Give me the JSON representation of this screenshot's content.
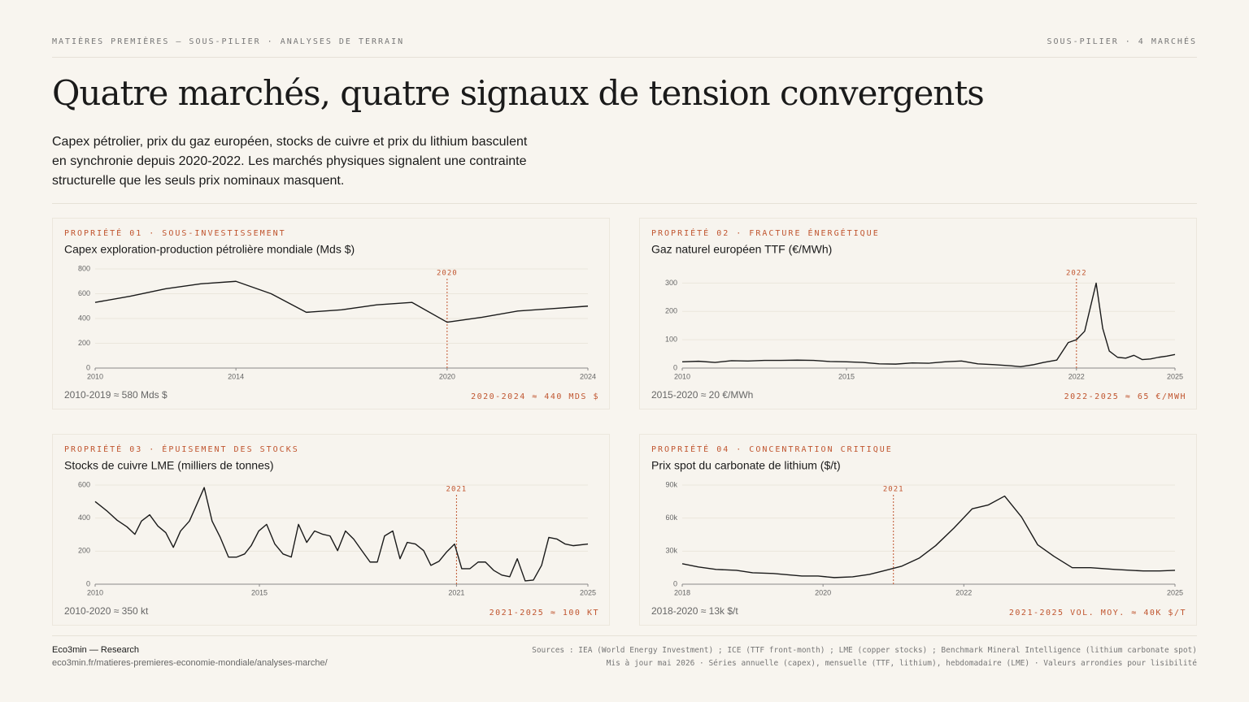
{
  "header": {
    "kicker": "MATIÈRES PREMIÈRES — SOUS-PILIER · ANALYSES DE TERRAIN",
    "right": "SOUS-PILIER · 4 MARCHÉS"
  },
  "title": "Quatre marchés, quatre signaux de tension convergents",
  "subtitle": "Capex pétrolier, prix du gaz européen, stocks de cuivre et prix du lithium basculent en synchronie depuis 2020-2022. Les marchés physiques signalent une contrainte structurelle que les seuls prix nominaux masquent.",
  "chart_data": [
    {
      "type": "line",
      "kicker": "PROPRIÉTÉ 01 · SOUS-INVESTISSEMENT",
      "title": "Capex exploration-production pétrolière mondiale (Mds $)",
      "color": "#1a1a1a",
      "marker_color": "#c0552f",
      "x": [
        2010,
        2011,
        2012,
        2013,
        2014,
        2015,
        2016,
        2017,
        2018,
        2019,
        2020,
        2021,
        2022,
        2023,
        2024
      ],
      "values": [
        530,
        580,
        640,
        680,
        700,
        600,
        450,
        470,
        510,
        530,
        370,
        410,
        460,
        480,
        500
      ],
      "xlim": [
        2010,
        2024
      ],
      "xticks": [
        2010,
        2014,
        2020,
        2024
      ],
      "ylim": [
        0,
        800
      ],
      "yticks": [
        0,
        200,
        400,
        600,
        800
      ],
      "grid": true,
      "marker": 2020,
      "note_left": "2010-2019 ≈ 580 Mds $",
      "note_right": "2020-2024 ≈ 440 MDS $"
    },
    {
      "type": "line",
      "kicker": "PROPRIÉTÉ 02 · FRACTURE ÉNERGÉTIQUE",
      "title": "Gaz naturel européen TTF (€/MWh)",
      "color": "#1a1a1a",
      "marker_color": "#c0552f",
      "x": [
        2010,
        2010.5,
        2011,
        2011.5,
        2012,
        2012.5,
        2013,
        2013.5,
        2014,
        2014.5,
        2015,
        2015.5,
        2016,
        2016.5,
        2017,
        2017.5,
        2018,
        2018.5,
        2019,
        2019.5,
        2020,
        2020.3,
        2020.7,
        2021,
        2021.4,
        2021.75,
        2022,
        2022.25,
        2022.6,
        2022.8,
        2023,
        2023.25,
        2023.5,
        2023.75,
        2024,
        2024.25,
        2024.5,
        2024.75,
        2025
      ],
      "values": [
        22,
        24,
        20,
        26,
        25,
        27,
        27,
        28,
        27,
        23,
        22,
        20,
        15,
        14,
        18,
        17,
        22,
        25,
        15,
        12,
        8,
        5,
        12,
        20,
        28,
        90,
        100,
        130,
        300,
        140,
        60,
        38,
        35,
        45,
        30,
        32,
        38,
        42,
        48
      ],
      "xlim": [
        2010,
        2025
      ],
      "xticks": [
        2010,
        2015,
        2022,
        2025
      ],
      "ylim": [
        0,
        350
      ],
      "yticks": [
        0,
        100,
        200,
        300
      ],
      "grid": true,
      "marker": 2022,
      "note_left": "2015-2020 ≈ 20 €/MWh",
      "note_right": "2022-2025 ≈ 65 €/MWH"
    },
    {
      "type": "line",
      "kicker": "PROPRIÉTÉ 03 · ÉPUISEMENT DES STOCKS",
      "title": "Stocks de cuivre LME (milliers de tonnes)",
      "color": "#1a1a1a",
      "marker_color": "#c0552f",
      "x": [
        2010,
        2010.35,
        2010.67,
        2010.97,
        2011.21,
        2011.41,
        2011.66,
        2011.91,
        2012.15,
        2012.38,
        2012.6,
        2012.87,
        2013.09,
        2013.32,
        2013.56,
        2013.81,
        2014.06,
        2014.31,
        2014.55,
        2014.75,
        2014.98,
        2015.22,
        2015.47,
        2015.72,
        2015.97,
        2016.19,
        2016.44,
        2016.68,
        2016.93,
        2017.15,
        2017.38,
        2017.62,
        2017.87,
        2018.12,
        2018.37,
        2018.59,
        2018.81,
        2019.06,
        2019.28,
        2019.5,
        2019.75,
        2020,
        2020.22,
        2020.47,
        2020.69,
        2020.94,
        2021.16,
        2021.41,
        2021.66,
        2021.88,
        2022.13,
        2022.38,
        2022.62,
        2022.85,
        2023.09,
        2023.34,
        2023.59,
        2023.81,
        2024.06,
        2024.31,
        2024.55,
        2025
      ],
      "values": [
        500,
        445,
        387,
        347,
        302,
        382,
        420,
        352,
        312,
        223,
        322,
        382,
        481,
        585,
        382,
        283,
        164,
        164,
        183,
        233,
        322,
        362,
        243,
        183,
        164,
        362,
        253,
        322,
        302,
        292,
        203,
        322,
        273,
        203,
        134,
        134,
        292,
        322,
        154,
        253,
        243,
        203,
        114,
        139,
        193,
        243,
        94,
        94,
        134,
        134,
        84,
        55,
        45,
        154,
        20,
        25,
        114,
        283,
        273,
        243,
        233,
        243
      ],
      "xlim": [
        2010,
        2025
      ],
      "xticks": [
        2010,
        2015,
        2021,
        2025
      ],
      "ylim": [
        0,
        600
      ],
      "yticks": [
        0,
        200,
        400,
        600
      ],
      "grid": true,
      "marker": 2021,
      "note_left": "2010-2020 ≈ 350 kt",
      "note_right": "2021-2025 ≈ 100 KT"
    },
    {
      "type": "line",
      "kicker": "PROPRIÉTÉ 04 · CONCENTRATION CRITIQUE",
      "title": "Prix spot du carbonate de lithium ($/t)",
      "color": "#1a1a1a",
      "marker_color": "#c0552f",
      "x": [
        2018,
        2018.23,
        2018.48,
        2018.77,
        2019,
        2019.29,
        2019.7,
        2019.93,
        2020.16,
        2020.42,
        2020.66,
        2020.89,
        2021.12,
        2021.37,
        2021.6,
        2021.86,
        2022.12,
        2022.35,
        2022.58,
        2022.82,
        2023.05,
        2023.28,
        2023.54,
        2023.8,
        2024.14,
        2024.55,
        2024.78,
        2025
      ],
      "values": [
        18600,
        15600,
        13400,
        12600,
        10400,
        9700,
        7400,
        7400,
        6000,
        6700,
        8900,
        12600,
        16400,
        23800,
        35000,
        51000,
        68500,
        72000,
        80000,
        61000,
        35700,
        25300,
        15000,
        15000,
        13400,
        12000,
        12000,
        12600
      ],
      "xlim": [
        2018,
        2025
      ],
      "xticks": [
        2018,
        2020,
        2022,
        2025
      ],
      "ylim": [
        0,
        90000
      ],
      "yticks": [
        0,
        {
          "value": 30000,
          "label": "30k"
        },
        {
          "value": 60000,
          "label": "60k"
        },
        {
          "value": 90000,
          "label": "90k"
        }
      ],
      "grid": true,
      "marker": 2021,
      "note_left": "2018-2020 ≈ 13k $/t",
      "note_right": "2021-2025 VOL. MOY. ≈ 40K $/T"
    }
  ],
  "footer": {
    "brand": "Eco3min — Research",
    "url": "eco3min.fr/matieres-premieres-economie-mondiale/analyses-marche/",
    "sources": [
      "Sources : IEA (World Energy Investment) ; ICE (TTF front-month) ; LME (copper stocks) ; Benchmark Mineral Intelligence (lithium carbonate spot)",
      "Mis à jour mai 2026 · Séries annuelle (capex), mensuelle (TTF, lithium), hebdomadaire (LME) · Valeurs arrondies pour lisibilité"
    ]
  }
}
